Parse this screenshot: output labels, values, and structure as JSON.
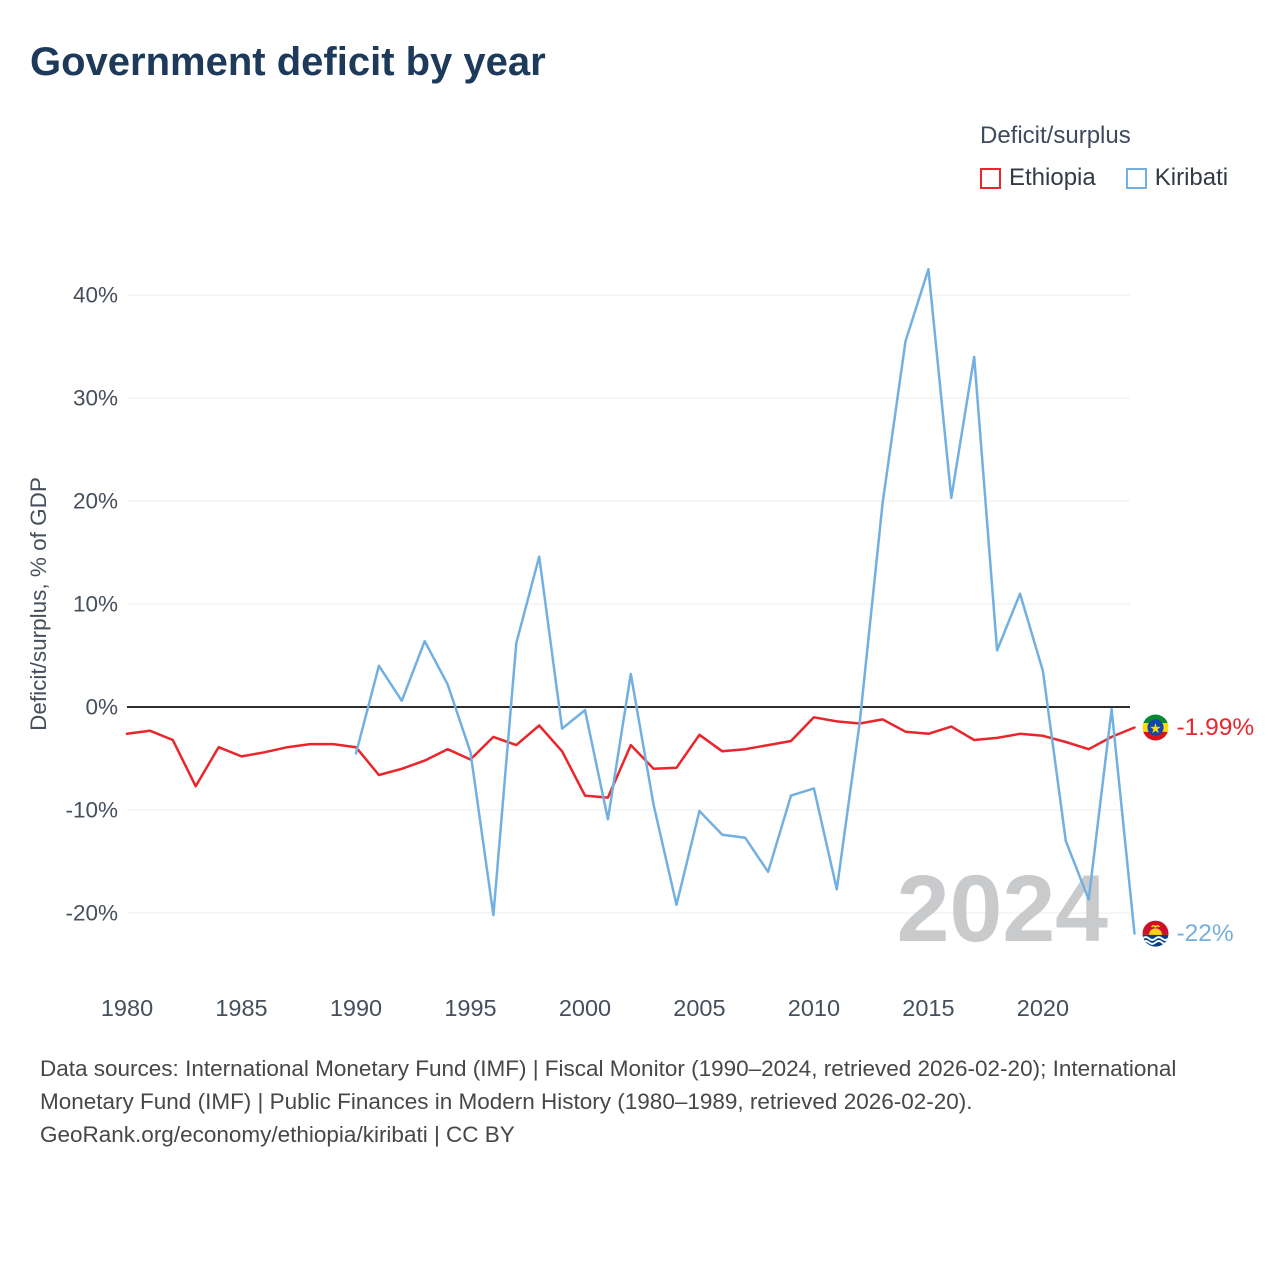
{
  "title": "Government deficit by year",
  "legend": {
    "title": "Deficit/surplus",
    "items": [
      {
        "label": "Ethiopia",
        "color": "#e8262c"
      },
      {
        "label": "Kiribati",
        "color": "#72b0e2"
      }
    ]
  },
  "watermark": "2024",
  "footer": {
    "sources": "Data sources: International Monetary Fund (IMF) | Fiscal Monitor (1990–2024, retrieved 2026-02-20); International Monetary Fund (IMF) | Public Finances in Modern History (1980–1989, retrieved 2026-02-20).",
    "attribution": "GeoRank.org/economy/ethiopia/kiribati | CC BY"
  },
  "chart_data": {
    "type": "line",
    "title": "Government deficit by year",
    "ylabel": "Deficit/surplus, % of GDP",
    "xlabel": "",
    "grid": true,
    "legend_position": "top-right",
    "xlim": [
      1980,
      2024
    ],
    "ylim": [
      -25,
      45
    ],
    "x_ticks": [
      1980,
      1985,
      1990,
      1995,
      2000,
      2005,
      2010,
      2015,
      2020
    ],
    "y_ticks": [
      -20,
      -10,
      0,
      10,
      20,
      30,
      40
    ],
    "x": [
      1980,
      1981,
      1982,
      1983,
      1984,
      1985,
      1986,
      1987,
      1988,
      1989,
      1990,
      1991,
      1992,
      1993,
      1994,
      1995,
      1996,
      1997,
      1998,
      1999,
      2000,
      2001,
      2002,
      2003,
      2004,
      2005,
      2006,
      2007,
      2008,
      2009,
      2010,
      2011,
      2012,
      2013,
      2014,
      2015,
      2016,
      2017,
      2018,
      2019,
      2020,
      2021,
      2022,
      2023,
      2024
    ],
    "series": [
      {
        "name": "Ethiopia",
        "color": "#e8262c",
        "end_label": "-1.99%",
        "values": [
          -2.6,
          -2.3,
          -3.2,
          -7.7,
          -3.9,
          -4.8,
          -4.4,
          -3.9,
          -3.6,
          -3.6,
          -3.9,
          -6.6,
          -6.0,
          -5.2,
          -4.1,
          -5.1,
          -2.9,
          -3.7,
          -1.8,
          -4.3,
          -8.6,
          -8.8,
          -3.7,
          -6.0,
          -5.9,
          -2.7,
          -4.3,
          -4.1,
          -3.7,
          -3.3,
          -1.0,
          -1.4,
          -1.6,
          -1.2,
          -2.4,
          -2.6,
          -1.9,
          -3.2,
          -3.0,
          -2.6,
          -2.8,
          -3.4,
          -4.1,
          -2.9,
          -1.99
        ]
      },
      {
        "name": "Kiribati",
        "color": "#72b0e2",
        "end_label": "-22%",
        "values": [
          null,
          null,
          null,
          null,
          null,
          null,
          null,
          null,
          null,
          null,
          -4.5,
          4.0,
          0.6,
          6.4,
          2.2,
          -4.4,
          -20.2,
          6.2,
          14.6,
          -2.1,
          -0.3,
          -10.9,
          3.2,
          -9.5,
          -19.2,
          -10.1,
          -12.4,
          -12.7,
          -16.0,
          -8.6,
          -7.9,
          -17.7,
          -1.5,
          19.8,
          35.5,
          42.5,
          20.3,
          34.0,
          5.5,
          11.0,
          3.5,
          -13.0,
          -18.7,
          -0.2,
          -22
        ]
      }
    ]
  }
}
